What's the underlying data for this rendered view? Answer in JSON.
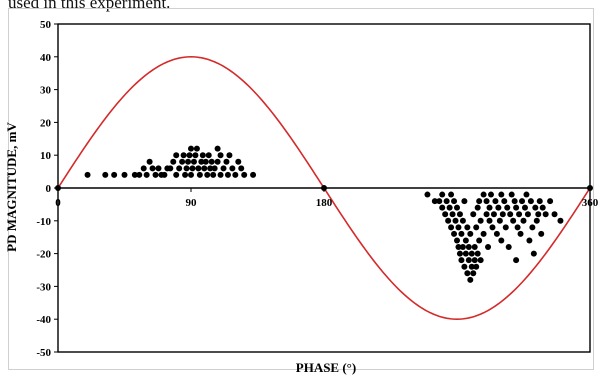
{
  "caption": "used in this experiment.",
  "chart_data": {
    "type": "scatter",
    "xlabel": "PHASE (°)",
    "ylabel": "PD MAGNITUDE, mV",
    "xlim": [
      0,
      360
    ],
    "ylim": [
      -50,
      50
    ],
    "x_ticks": [
      "0",
      "90",
      "180",
      "360"
    ],
    "y_ticks": [
      "50",
      "40",
      "30",
      "20",
      "10",
      "0",
      "-10",
      "-20",
      "-30",
      "-40",
      "-50"
    ],
    "grid": false,
    "legend": "none",
    "reference_sine": {
      "amplitude": 40,
      "period_deg": 360,
      "color": "#d42a2a"
    },
    "point_color": "#000000",
    "series": [
      {
        "values": [
          [
            0,
            0
          ],
          [
            20,
            4
          ],
          [
            32,
            4
          ],
          [
            38,
            4
          ],
          [
            45,
            4
          ],
          [
            52,
            4
          ],
          [
            55,
            4
          ],
          [
            58,
            6
          ],
          [
            60,
            4
          ],
          [
            62,
            8
          ],
          [
            64,
            6
          ],
          [
            66,
            4
          ],
          [
            68,
            6
          ],
          [
            70,
            4
          ],
          [
            72,
            4
          ],
          [
            74,
            6
          ],
          [
            76,
            6
          ],
          [
            78,
            8
          ],
          [
            80,
            4
          ],
          [
            80,
            10
          ],
          [
            82,
            6
          ],
          [
            84,
            8
          ],
          [
            85,
            10
          ],
          [
            86,
            4
          ],
          [
            87,
            6
          ],
          [
            88,
            8
          ],
          [
            89,
            10
          ],
          [
            90,
            12
          ],
          [
            90,
            4
          ],
          [
            91,
            6
          ],
          [
            92,
            8
          ],
          [
            93,
            10
          ],
          [
            94,
            12
          ],
          [
            95,
            6
          ],
          [
            96,
            4
          ],
          [
            97,
            8
          ],
          [
            98,
            10
          ],
          [
            99,
            6
          ],
          [
            100,
            8
          ],
          [
            101,
            4
          ],
          [
            102,
            10
          ],
          [
            103,
            6
          ],
          [
            104,
            8
          ],
          [
            105,
            4
          ],
          [
            106,
            6
          ],
          [
            108,
            12
          ],
          [
            108,
            8
          ],
          [
            110,
            4
          ],
          [
            110,
            10
          ],
          [
            112,
            6
          ],
          [
            114,
            8
          ],
          [
            115,
            4
          ],
          [
            116,
            10
          ],
          [
            118,
            6
          ],
          [
            120,
            4
          ],
          [
            122,
            8
          ],
          [
            124,
            6
          ],
          [
            126,
            4
          ],
          [
            132,
            4
          ],
          [
            180,
            0
          ],
          [
            250,
            -2
          ],
          [
            255,
            -4
          ],
          [
            258,
            -4
          ],
          [
            260,
            -6
          ],
          [
            260,
            -2
          ],
          [
            262,
            -8
          ],
          [
            263,
            -4
          ],
          [
            264,
            -10
          ],
          [
            265,
            -6
          ],
          [
            266,
            -12
          ],
          [
            266,
            -2
          ],
          [
            267,
            -8
          ],
          [
            268,
            -14
          ],
          [
            268,
            -4
          ],
          [
            269,
            -10
          ],
          [
            270,
            -16
          ],
          [
            270,
            -6
          ],
          [
            271,
            -18
          ],
          [
            271,
            -12
          ],
          [
            272,
            -20
          ],
          [
            272,
            -8
          ],
          [
            273,
            -14
          ],
          [
            273,
            -22
          ],
          [
            274,
            -10
          ],
          [
            274,
            -18
          ],
          [
            275,
            -24
          ],
          [
            275,
            -4
          ],
          [
            276,
            -16
          ],
          [
            276,
            -20
          ],
          [
            277,
            -12
          ],
          [
            277,
            -26
          ],
          [
            278,
            -22
          ],
          [
            278,
            -18
          ],
          [
            279,
            -28
          ],
          [
            279,
            -14
          ],
          [
            280,
            -24
          ],
          [
            280,
            -20
          ],
          [
            281,
            -8
          ],
          [
            281,
            -26
          ],
          [
            282,
            -18
          ],
          [
            282,
            -22
          ],
          [
            283,
            -12
          ],
          [
            283,
            -24
          ],
          [
            284,
            -20
          ],
          [
            284,
            -6
          ],
          [
            285,
            -16
          ],
          [
            285,
            -4
          ],
          [
            286,
            -22
          ],
          [
            286,
            -10
          ],
          [
            288,
            -14
          ],
          [
            288,
            -2
          ],
          [
            290,
            -8
          ],
          [
            290,
            -4
          ],
          [
            291,
            -18
          ],
          [
            292,
            -10
          ],
          [
            292,
            -6
          ],
          [
            293,
            -2
          ],
          [
            294,
            -12
          ],
          [
            295,
            -8
          ],
          [
            296,
            -4
          ],
          [
            297,
            -14
          ],
          [
            298,
            -6
          ],
          [
            299,
            -10
          ],
          [
            300,
            -2
          ],
          [
            300,
            -16
          ],
          [
            301,
            -8
          ],
          [
            302,
            -4
          ],
          [
            303,
            -12
          ],
          [
            304,
            -6
          ],
          [
            305,
            -18
          ],
          [
            306,
            -8
          ],
          [
            307,
            -2
          ],
          [
            308,
            -10
          ],
          [
            309,
            -4
          ],
          [
            310,
            -22
          ],
          [
            310,
            -6
          ],
          [
            311,
            -12
          ],
          [
            312,
            -8
          ],
          [
            313,
            -14
          ],
          [
            314,
            -4
          ],
          [
            315,
            -10
          ],
          [
            316,
            -6
          ],
          [
            317,
            -2
          ],
          [
            318,
            -8
          ],
          [
            319,
            -16
          ],
          [
            320,
            -4
          ],
          [
            321,
            -12
          ],
          [
            322,
            -20
          ],
          [
            323,
            -6
          ],
          [
            324,
            -10
          ],
          [
            325,
            -8
          ],
          [
            326,
            -4
          ],
          [
            327,
            -14
          ],
          [
            328,
            -6
          ],
          [
            330,
            -8
          ],
          [
            333,
            -4
          ],
          [
            336,
            -8
          ],
          [
            340,
            -10
          ],
          [
            360,
            0
          ]
        ]
      }
    ]
  }
}
